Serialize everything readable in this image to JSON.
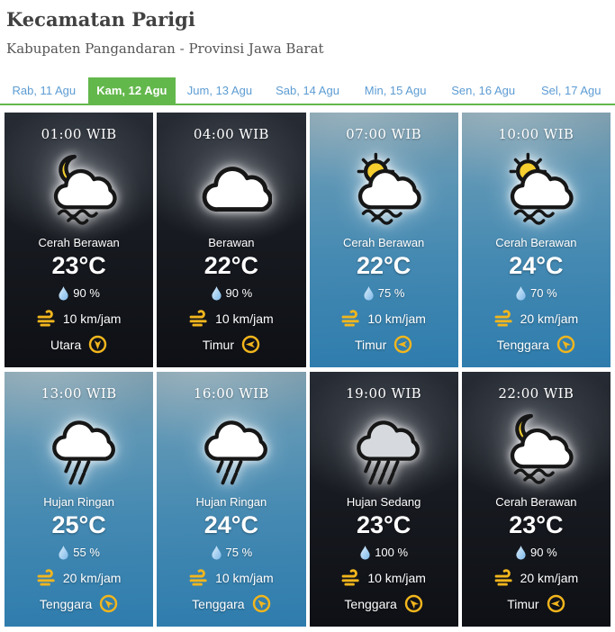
{
  "header": {
    "title": "Kecamatan Parigi",
    "subtitle": "Kabupaten Pangandaran - Provinsi Jawa Barat"
  },
  "tabs": [
    {
      "label": "Rab, 11 Agu",
      "active": false
    },
    {
      "label": "Kam, 12 Agu",
      "active": true
    },
    {
      "label": "Jum, 13 Agu",
      "active": false
    },
    {
      "label": "Sab, 14 Agu",
      "active": false
    },
    {
      "label": "Min, 15 Agu",
      "active": false
    },
    {
      "label": "Sen, 16 Agu",
      "active": false
    },
    {
      "label": "Sel, 17 Agu",
      "active": false
    }
  ],
  "colors": {
    "accent_green": "#63b84c",
    "tab_blue": "#5d9cd3",
    "icon_gold": "#f2b61d",
    "drop_blue": "#7db8e8"
  },
  "cards": [
    {
      "time": "01:00 WIB",
      "icon": "moon-cloud",
      "condition": "Cerah Berawan",
      "temp": "23°C",
      "humidity": "90 %",
      "wind": "10 km/jam",
      "direction": "Utara",
      "arrow_deg": 180,
      "theme": "night"
    },
    {
      "time": "04:00 WIB",
      "icon": "cloud",
      "condition": "Berawan",
      "temp": "22°C",
      "humidity": "90 %",
      "wind": "10 km/jam",
      "direction": "Timur",
      "arrow_deg": 270,
      "theme": "night"
    },
    {
      "time": "07:00 WIB",
      "icon": "sun-cloud",
      "condition": "Cerah Berawan",
      "temp": "22°C",
      "humidity": "75 %",
      "wind": "10 km/jam",
      "direction": "Timur",
      "arrow_deg": 270,
      "theme": "day"
    },
    {
      "time": "10:00 WIB",
      "icon": "sun-cloud",
      "condition": "Cerah Berawan",
      "temp": "24°C",
      "humidity": "70 %",
      "wind": "20 km/jam",
      "direction": "Tenggara",
      "arrow_deg": 315,
      "theme": "day"
    },
    {
      "time": "13:00 WIB",
      "icon": "rain-light",
      "condition": "Hujan Ringan",
      "temp": "25°C",
      "humidity": "55 %",
      "wind": "20 km/jam",
      "direction": "Tenggara",
      "arrow_deg": 315,
      "theme": "day"
    },
    {
      "time": "16:00 WIB",
      "icon": "rain-light",
      "condition": "Hujan Ringan",
      "temp": "24°C",
      "humidity": "75 %",
      "wind": "10 km/jam",
      "direction": "Tenggara",
      "arrow_deg": 315,
      "theme": "day"
    },
    {
      "time": "19:00 WIB",
      "icon": "rain-moderate",
      "condition": "Hujan Sedang",
      "temp": "23°C",
      "humidity": "100 %",
      "wind": "10 km/jam",
      "direction": "Tenggara",
      "arrow_deg": 315,
      "theme": "night"
    },
    {
      "time": "22:00 WIB",
      "icon": "moon-cloud",
      "condition": "Cerah Berawan",
      "temp": "23°C",
      "humidity": "90 %",
      "wind": "20 km/jam",
      "direction": "Timur",
      "arrow_deg": 270,
      "theme": "night"
    }
  ]
}
